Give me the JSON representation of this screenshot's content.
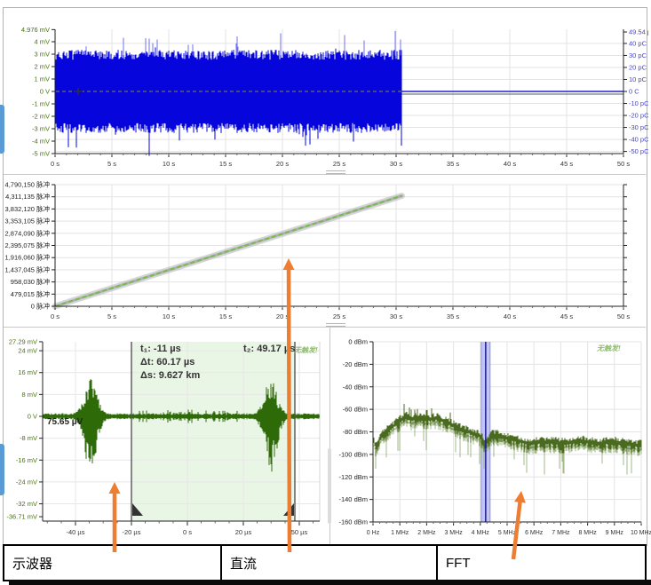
{
  "colors": {
    "accent_orange": "#ed7d31",
    "trace_blue": "#0505dc",
    "flat_blue": "#2222cc",
    "trace_green": "#2e6b08",
    "spectrum_green": "#4a6b1f",
    "spectrum_light": "#93ad74",
    "axis_green": "#44730a",
    "axis_blue": "#4343d6",
    "band_blue": "#b7baf1",
    "band_edge": "#9093e2",
    "band_line": "#1d1d8f",
    "shade_green": "#e9f6e6",
    "zero_dash_olive": "#8a8a2a",
    "scrollbar_blue": "#5b9bd5",
    "grid": "#e3e3e6",
    "axis_dark": "#222222"
  },
  "bottom_tabs": [
    {
      "label": "示波器"
    },
    {
      "label": "直流"
    },
    {
      "label": "FFT"
    }
  ],
  "chart_data": [
    {
      "id": "charge-waveform",
      "type": "line",
      "x_ticks": [
        "0 s",
        "5 s",
        "10 s",
        "15 s",
        "20 s",
        "25 s",
        "30 s",
        "35 s",
        "40 s",
        "45 s",
        "50 s"
      ],
      "x_range_s": [
        0,
        50
      ],
      "y_left": {
        "unit": "mV",
        "color": "#44730a",
        "ticks": [
          {
            "v": 4.976,
            "label": "4.976 mV"
          },
          {
            "v": 4,
            "label": "4 mV"
          },
          {
            "v": 3,
            "label": "3 mV"
          },
          {
            "v": 2,
            "label": "2 mV"
          },
          {
            "v": 1,
            "label": "1 mV"
          },
          {
            "v": 0,
            "label": "0 V"
          },
          {
            "v": -1,
            "label": "-1 mV"
          },
          {
            "v": -2,
            "label": "-2 mV"
          },
          {
            "v": -3,
            "label": "-3 mV"
          },
          {
            "v": -4,
            "label": "-4 mV"
          },
          {
            "v": -5,
            "label": "-5 mV"
          }
        ]
      },
      "y_right": {
        "unit": "pC",
        "color": "#4343d6",
        "ticks": [
          {
            "v": 49.54,
            "label": "49.54 pC"
          },
          {
            "v": 40,
            "label": "40 pC"
          },
          {
            "v": 30,
            "label": "30 pC"
          },
          {
            "v": 20,
            "label": "20 pC"
          },
          {
            "v": 10,
            "label": "10 pC"
          },
          {
            "v": 0,
            "label": "0 C"
          },
          {
            "v": -10,
            "label": "-10 pC"
          },
          {
            "v": -20,
            "label": "-20 pC"
          },
          {
            "v": -30,
            "label": "-30 pC"
          },
          {
            "v": -40,
            "label": "-40 pC"
          },
          {
            "v": -50,
            "label": "-50 pC"
          }
        ]
      },
      "series": [
        {
          "name": "charge-noise",
          "kind": "noise-band",
          "x_start_s": 0,
          "x_end_s": 30.5,
          "band_mv": 3.0,
          "spike_mv": 4.9
        },
        {
          "name": "flat-after-stop",
          "kind": "flat",
          "value": 0,
          "x_start_s": 30.5,
          "x_end_s": 50
        }
      ],
      "zero_cursor_v": 0
    },
    {
      "id": "pulse-count",
      "type": "line",
      "y_ticks": [
        "4,790,150 脉冲",
        "4,311,135 脉冲",
        "3,832,120 脉冲",
        "3,353,105 脉冲",
        "2,874,090 脉冲",
        "2,395,075 脉冲",
        "1,916,060 脉冲",
        "1,437,045 脉冲",
        "958,030 脉冲",
        "479,015 脉冲",
        "0 脉冲"
      ],
      "y_max": 4790150,
      "x_ticks": [
        "0 s",
        "5 s",
        "10 s",
        "15 s",
        "20 s",
        "25 s",
        "30 s",
        "35 s",
        "40 s",
        "45 s",
        "50 s"
      ],
      "x_range_s": [
        0,
        50
      ],
      "series": [
        {
          "name": "cumulative-pulse-count",
          "kind": "ramp",
          "from_s": 0,
          "from_count": 0,
          "to_s": 30.5,
          "to_count": 4350000
        }
      ]
    },
    {
      "id": "oscilloscope",
      "type": "line",
      "y_ticks": [
        {
          "v": 27.29,
          "label": "27.29 mV"
        },
        {
          "v": 24,
          "label": "24 mV"
        },
        {
          "v": 16,
          "label": "16 mV"
        },
        {
          "v": 8,
          "label": "8 mV"
        },
        {
          "v": 0,
          "label": "0 V"
        },
        {
          "v": -8,
          "label": "-8 mV"
        },
        {
          "v": -16,
          "label": "-16 mV"
        },
        {
          "v": -24,
          "label": "-24 mV"
        },
        {
          "v": -32,
          "label": "-32 mV"
        },
        {
          "v": -36.71,
          "label": "-36.71 mV"
        }
      ],
      "x_ticks": [
        "-40 µs",
        "-20 µs",
        "0 s",
        "20 µs",
        "50 µs"
      ],
      "cursors": {
        "t1_us": -11,
        "t2_us": 49.17
      },
      "annotations": {
        "t1": "t₁: -11 µs",
        "dt": "Δt: 60.17 µs",
        "ds": "Δs: 9.627 km",
        "t2": "t₂: 49.17 µs",
        "level": "75.65 µV",
        "no_trigger": "无触发!"
      },
      "series": [
        {
          "name": "td-waveform",
          "kind": "noise-with-spikes",
          "spike1_amp_mv": [
            14.5,
            -20.5
          ],
          "spike2_amp_mv": [
            13.8,
            -19.5
          ]
        }
      ]
    },
    {
      "id": "fft-spectrum",
      "type": "line",
      "y_ticks": [
        "0 dBm",
        "-20 dBm",
        "-40 dBm",
        "-60 dBm",
        "-80 dBm",
        "-100 dBm",
        "-120 dBm",
        "-140 dBm",
        "-160 dBm"
      ],
      "x_ticks": [
        "0 Hz",
        "1 MHz",
        "2 MHz",
        "3 MHz",
        "4 MHz",
        "5 MHz",
        "6 MHz",
        "7 MHz",
        "8 MHz",
        "9 MHz",
        "10 MHz"
      ],
      "x_range_mhz": [
        0,
        10
      ],
      "ylim_dbm": [
        -160,
        0
      ],
      "marker_band": {
        "center_mhz": 4.2,
        "width_mhz": 0.33
      },
      "annotations": {
        "no_trigger": "无触发!"
      },
      "series": [
        {
          "name": "spectrum",
          "kind": "spectrum",
          "peak_dbm": -58,
          "floor_dbm": -92
        }
      ]
    }
  ],
  "arrows": [
    {
      "name": "arrow-oscilloscope",
      "tail": [
        129,
        622
      ],
      "head": [
        129,
        543
      ]
    },
    {
      "name": "arrow-dc",
      "tail": [
        326,
        622
      ],
      "head": [
        325,
        291
      ]
    },
    {
      "name": "arrow-fft",
      "tail": [
        578,
        630
      ],
      "head": [
        587,
        553
      ]
    }
  ]
}
